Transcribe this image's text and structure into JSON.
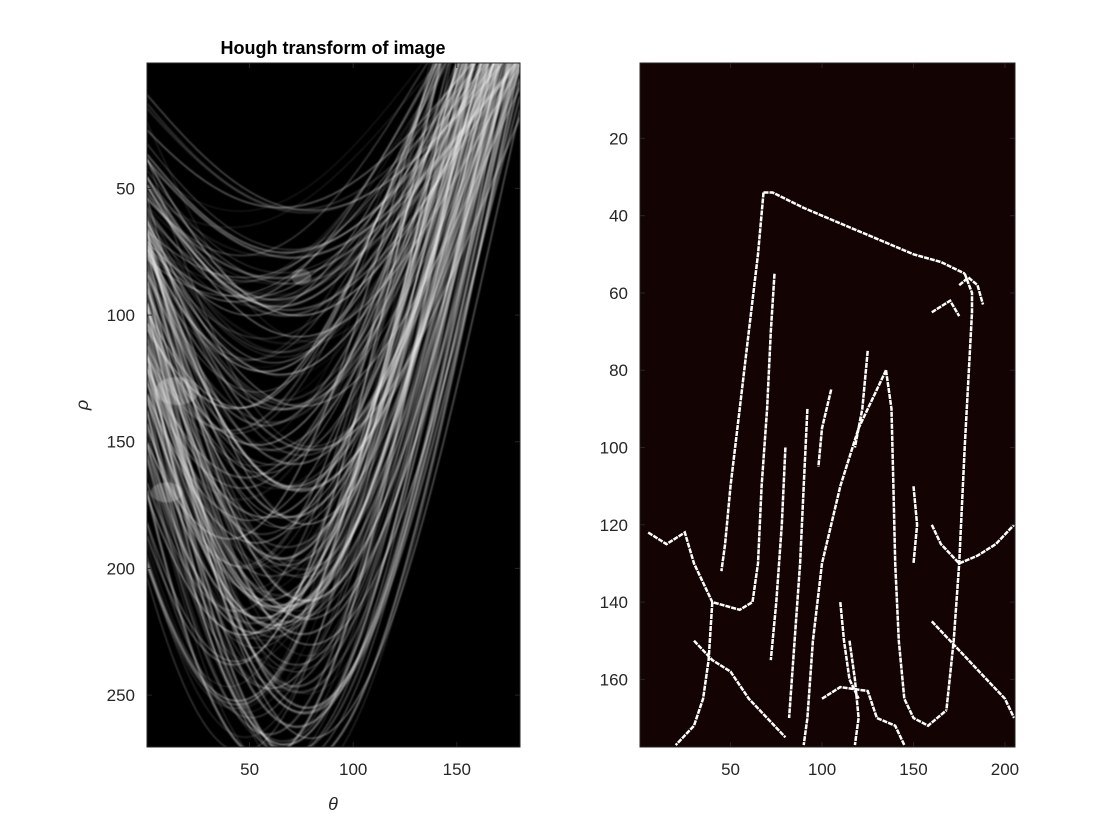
{
  "chart_data": [
    {
      "type": "heatmap",
      "title": "Hough transform of image",
      "xlabel": "θ",
      "ylabel": "ρ",
      "xlim": [
        0.5,
        180.5
      ],
      "ylim": [
        0.5,
        270.5
      ],
      "y_reversed": true,
      "xticks": [
        50,
        100,
        150
      ],
      "yticks": [
        50,
        100,
        150,
        200,
        250
      ],
      "colormap": "gray",
      "background": "#000000",
      "description_values": {
        "bright_cluster_center": [
          15,
          130
        ],
        "secondary_cluster_center": [
          10,
          170
        ],
        "envelope_bottom_rho": 258,
        "envelope_bottom_theta": 55
      }
    },
    {
      "type": "heatmap",
      "title": "",
      "xlabel": "",
      "ylabel": "",
      "xlim": [
        0.5,
        205.5
      ],
      "ylim": [
        0.5,
        177.5
      ],
      "y_reversed": true,
      "xticks": [
        50,
        100,
        150,
        200
      ],
      "yticks": [
        20,
        40,
        60,
        80,
        100,
        120,
        140,
        160
      ],
      "colormap": "binary-edges",
      "background": "#140303",
      "edge_color": "#ffffff",
      "edges": [
        [
          [
            68,
            34
          ],
          [
            73,
            34
          ],
          [
            90,
            38
          ],
          [
            110,
            42
          ],
          [
            130,
            46
          ],
          [
            150,
            50
          ],
          [
            165,
            52
          ],
          [
            178,
            55
          ]
        ],
        [
          [
            68,
            34
          ],
          [
            65,
            50
          ],
          [
            60,
            70
          ],
          [
            55,
            90
          ],
          [
            50,
            110
          ],
          [
            47,
            125
          ],
          [
            45,
            132
          ]
        ],
        [
          [
            178,
            55
          ],
          [
            182,
            60
          ],
          [
            182,
            65
          ],
          [
            178,
            100
          ],
          [
            175,
            130
          ],
          [
            172,
            150
          ],
          [
            168,
            168
          ]
        ],
        [
          [
            135,
            80
          ],
          [
            130,
            85
          ],
          [
            120,
            95
          ],
          [
            110,
            110
          ],
          [
            100,
            130
          ],
          [
            95,
            150
          ],
          [
            92,
            170
          ],
          [
            90,
            177
          ]
        ],
        [
          [
            135,
            80
          ],
          [
            138,
            90
          ],
          [
            139,
            110
          ],
          [
            140,
            130
          ],
          [
            142,
            150
          ],
          [
            145,
            165
          ],
          [
            150,
            170
          ],
          [
            158,
            172
          ],
          [
            168,
            168
          ]
        ],
        [
          [
            5,
            122
          ],
          [
            15,
            125
          ],
          [
            25,
            122
          ],
          [
            30,
            130
          ],
          [
            40,
            140
          ],
          [
            55,
            142
          ],
          [
            62,
            140
          ],
          [
            65,
            130
          ],
          [
            67,
            110
          ],
          [
            70,
            90
          ],
          [
            72,
            70
          ],
          [
            74,
            55
          ]
        ],
        [
          [
            40,
            140
          ],
          [
            38,
            155
          ],
          [
            35,
            165
          ],
          [
            30,
            172
          ],
          [
            20,
            177
          ]
        ],
        [
          [
            115,
            150
          ],
          [
            118,
            160
          ],
          [
            120,
            170
          ],
          [
            118,
            177
          ]
        ],
        [
          [
            100,
            165
          ],
          [
            110,
            162
          ],
          [
            125,
            163
          ],
          [
            130,
            170
          ],
          [
            140,
            172
          ],
          [
            145,
            177
          ]
        ],
        [
          [
            160,
            120
          ],
          [
            165,
            125
          ],
          [
            175,
            130
          ],
          [
            185,
            128
          ],
          [
            195,
            125
          ],
          [
            205,
            120
          ]
        ],
        [
          [
            160,
            145
          ],
          [
            170,
            150
          ],
          [
            180,
            155
          ],
          [
            190,
            160
          ],
          [
            200,
            165
          ],
          [
            205,
            170
          ]
        ],
        [
          [
            175,
            58
          ],
          [
            180,
            56
          ],
          [
            185,
            58
          ],
          [
            188,
            63
          ]
        ],
        [
          [
            160,
            65
          ],
          [
            170,
            62
          ],
          [
            175,
            66
          ]
        ],
        [
          [
            80,
            100
          ],
          [
            78,
            120
          ],
          [
            75,
            140
          ],
          [
            72,
            155
          ]
        ],
        [
          [
            92,
            90
          ],
          [
            90,
            110
          ],
          [
            88,
            130
          ],
          [
            85,
            150
          ],
          [
            82,
            170
          ]
        ],
        [
          [
            125,
            75
          ],
          [
            122,
            90
          ],
          [
            118,
            100
          ]
        ],
        [
          [
            110,
            140
          ],
          [
            112,
            150
          ],
          [
            115,
            160
          ],
          [
            120,
            165
          ]
        ],
        [
          [
            30,
            150
          ],
          [
            40,
            155
          ],
          [
            50,
            158
          ],
          [
            60,
            165
          ],
          [
            70,
            170
          ],
          [
            80,
            175
          ]
        ],
        [
          [
            150,
            110
          ],
          [
            152,
            120
          ],
          [
            150,
            130
          ]
        ],
        [
          [
            105,
            85
          ],
          [
            100,
            95
          ],
          [
            98,
            105
          ]
        ]
      ]
    }
  ]
}
